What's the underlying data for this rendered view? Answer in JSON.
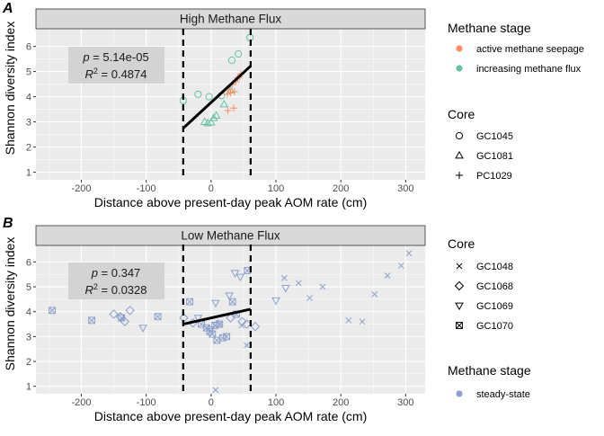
{
  "chart_data": [
    {
      "type": "scatter",
      "panel_letter": "A",
      "strip_title": "High Methane Flux",
      "xlabel": "Distance above present-day peak AOM rate (cm)",
      "ylabel": "Shannon diversity index",
      "xlim": [
        -270,
        330
      ],
      "ylim": [
        0.7,
        6.7
      ],
      "x_ticks": [
        -200,
        -100,
        0,
        100,
        200,
        300
      ],
      "x_tick_labels": [
        "-200",
        "-100",
        "0",
        "100",
        "200",
        "300"
      ],
      "y_ticks": [
        1,
        2,
        3,
        4,
        5,
        6
      ],
      "y_tick_labels": [
        "1",
        "2",
        "3",
        "4",
        "5",
        "6"
      ],
      "grid": true,
      "vlines": [
        -43,
        61
      ],
      "regression": {
        "x": [
          -43,
          61
        ],
        "y": [
          2.75,
          5.22
        ]
      },
      "annotation": {
        "p_label": "p",
        "p_value": " = 5.14e-05",
        "r2_label": "R",
        "r2_sup": "2",
        "r2_value": " = 0.4874"
      },
      "series": [
        {
          "stage": "increasing",
          "shape": "circle",
          "points": [
            [
              -43,
              3.85
            ],
            [
              -20,
              4.1
            ],
            [
              -3,
              4.0
            ],
            [
              16,
              4.05
            ],
            [
              32,
              5.45
            ],
            [
              42,
              5.7
            ],
            [
              60,
              6.35
            ]
          ]
        },
        {
          "stage": "increasing",
          "shape": "triangle",
          "points": [
            [
              -10,
              3.0
            ],
            [
              -5,
              2.95
            ],
            [
              0,
              2.98
            ],
            [
              4,
              3.15
            ],
            [
              8,
              3.25
            ],
            [
              20,
              3.7
            ],
            [
              30,
              4.25
            ]
          ]
        },
        {
          "stage": "active",
          "shape": "plus",
          "points": [
            [
              25,
              4.1
            ],
            [
              28,
              4.3
            ],
            [
              30,
              4.15
            ],
            [
              33,
              4.5
            ],
            [
              36,
              4.2
            ],
            [
              38,
              4.6
            ],
            [
              41,
              4.75
            ],
            [
              44,
              4.8
            ],
            [
              46,
              4.9
            ],
            [
              26,
              3.45
            ],
            [
              35,
              3.55
            ]
          ]
        }
      ]
    },
    {
      "type": "scatter",
      "panel_letter": "B",
      "strip_title": "Low Methane Flux",
      "xlabel": "Distance above present-day peak AOM rate (cm)",
      "ylabel": "Shannon diversity index",
      "xlim": [
        -270,
        330
      ],
      "ylim": [
        0.7,
        6.7
      ],
      "x_ticks": [
        -200,
        -100,
        0,
        100,
        200,
        300
      ],
      "x_tick_labels": [
        "-200",
        "-100",
        "0",
        "100",
        "200",
        "300"
      ],
      "y_ticks": [
        1,
        2,
        3,
        4,
        5,
        6
      ],
      "y_tick_labels": [
        "1",
        "2",
        "3",
        "4",
        "5",
        "6"
      ],
      "grid": true,
      "vlines": [
        -43,
        61
      ],
      "regression": {
        "x": [
          -43,
          61
        ],
        "y": [
          3.5,
          4.1
        ]
      },
      "annotation": {
        "p_label": "p",
        "p_value": " = 0.347",
        "r2_label": "R",
        "r2_sup": "2",
        "r2_value": " = 0.0328"
      },
      "series": [
        {
          "stage": "steady",
          "shape": "x",
          "points": [
            [
              7,
              0.85
            ],
            [
              47,
              3.45
            ],
            [
              55,
              2.65
            ],
            [
              113,
              5.35
            ],
            [
              135,
              5.15
            ],
            [
              152,
              4.55
            ],
            [
              172,
              5.0
            ],
            [
              212,
              3.65
            ],
            [
              233,
              3.6
            ],
            [
              252,
              4.7
            ],
            [
              272,
              5.45
            ],
            [
              293,
              5.85
            ],
            [
              305,
              6.35
            ]
          ]
        },
        {
          "stage": "steady",
          "shape": "diamond",
          "points": [
            [
              -150,
              3.9
            ],
            [
              -140,
              3.8
            ],
            [
              -133,
              3.6
            ],
            [
              -125,
              4.05
            ],
            [
              -42,
              3.75
            ],
            [
              -28,
              3.55
            ],
            [
              10,
              3.5
            ],
            [
              30,
              3.75
            ],
            [
              48,
              3.6
            ],
            [
              55,
              3.5
            ],
            [
              68,
              3.4
            ]
          ]
        },
        {
          "stage": "steady",
          "shape": "triangledown",
          "points": [
            [
              -105,
              3.35
            ],
            [
              -20,
              3.75
            ],
            [
              0,
              3.3
            ],
            [
              7,
              4.35
            ],
            [
              28,
              4.65
            ],
            [
              37,
              5.55
            ],
            [
              45,
              5.4
            ],
            [
              100,
              4.45
            ],
            [
              115,
              4.95
            ]
          ]
        },
        {
          "stage": "steady",
          "shape": "boxx",
          "points": [
            [
              -245,
              4.05
            ],
            [
              -184,
              3.65
            ],
            [
              -138,
              3.75
            ],
            [
              -82,
              3.8
            ],
            [
              -33,
              4.4
            ],
            [
              -15,
              3.5
            ],
            [
              -7,
              3.35
            ],
            [
              -2,
              3.2
            ],
            [
              2,
              3.1
            ],
            [
              6,
              3.45
            ],
            [
              9,
              2.85
            ],
            [
              13,
              3.5
            ],
            [
              18,
              2.95
            ],
            [
              24,
              3.0
            ],
            [
              33,
              4.4
            ],
            [
              39,
              3.9
            ],
            [
              56,
              5.65
            ]
          ]
        }
      ]
    }
  ],
  "legends": {
    "stage_title": "Methane stage",
    "stage_items": [
      {
        "key": "active",
        "label": "active methane seepage",
        "color": "#FC8D62"
      },
      {
        "key": "increasing",
        "label": "increasing methane flux",
        "color": "#66C2A5"
      }
    ],
    "core_title_top": "Core",
    "core_items_top": [
      {
        "shape": "circle",
        "label": "GC1045"
      },
      {
        "shape": "triangle",
        "label": "GC1081"
      },
      {
        "shape": "plus",
        "label": "PC1029"
      }
    ],
    "core_title_bottom": "Core",
    "core_items_bottom": [
      {
        "shape": "x",
        "label": "GC1048"
      },
      {
        "shape": "diamond",
        "label": "GC1068"
      },
      {
        "shape": "triangledown",
        "label": "GC1069"
      },
      {
        "shape": "boxx",
        "label": "GC1070"
      }
    ],
    "stage_title_bottom": "Methane stage",
    "stage_items_bottom": [
      {
        "key": "steady",
        "label": "steady-state",
        "color": "#8DA0CB"
      }
    ]
  },
  "colors": {
    "active": "#FC8D62",
    "increasing": "#66C2A5",
    "steady": "#8DA0CB",
    "panel_bg": "#EBEBEB",
    "strip_bg": "#D9D9D9",
    "grid": "#FFFFFF"
  }
}
